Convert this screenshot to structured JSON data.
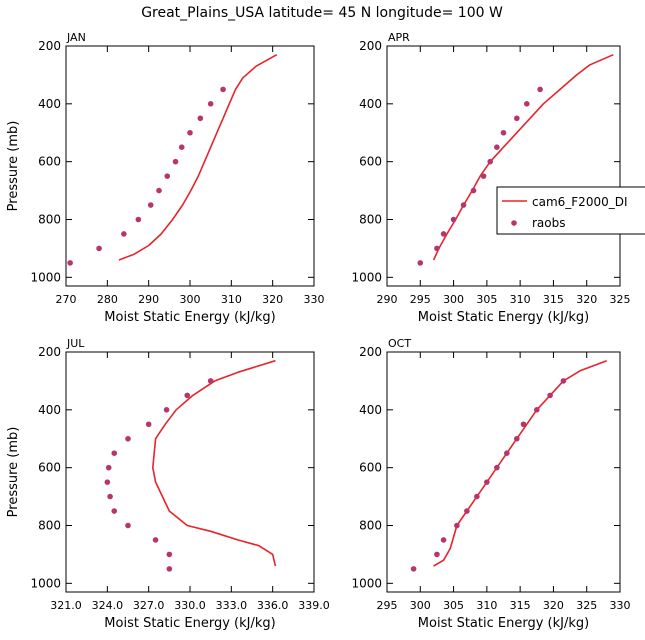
{
  "title": "Great_Plains_USA   latitude= 45 N longitude= 100 W",
  "colors": {
    "model": "#e8232a",
    "obs": "#b7356a",
    "axis": "#000000"
  },
  "legend": {
    "model_label": "cam6_F2000_DI",
    "obs_label": "raobs"
  },
  "chart_data": [
    {
      "type": "line",
      "panel": "JAN",
      "xlabel": "Moist Static Energy (kJ/kg)",
      "ylabel": "Pressure (mb)",
      "xlim": [
        270,
        330
      ],
      "ylim": [
        200,
        1030
      ],
      "xticks": [
        270,
        280,
        290,
        300,
        310,
        320,
        330
      ],
      "xticklabels": [
        "270",
        "280",
        "290",
        "300",
        "310",
        "320",
        "330"
      ],
      "yticks": [
        200,
        400,
        600,
        800,
        1000
      ],
      "yticklabels": [
        "200",
        "400",
        "600",
        "800",
        "1000"
      ],
      "series": [
        {
          "name": "cam6_F2000_DI",
          "kind": "line",
          "points": [
            [
              282.8,
              940
            ],
            [
              286.5,
              920
            ],
            [
              290,
              890
            ],
            [
              293,
              850
            ],
            [
              295.8,
              800
            ],
            [
              298.2,
              750
            ],
            [
              300.2,
              700
            ],
            [
              302,
              650
            ],
            [
              303.5,
              600
            ],
            [
              305,
              550
            ],
            [
              306.5,
              500
            ],
            [
              308,
              450
            ],
            [
              309.5,
              400
            ],
            [
              311,
              350
            ],
            [
              312.8,
              310
            ],
            [
              316,
              270
            ],
            [
              321,
              230
            ]
          ]
        },
        {
          "name": "raobs",
          "kind": "scatter",
          "points": [
            [
              271,
              950
            ],
            [
              278,
              900
            ],
            [
              284,
              850
            ],
            [
              287.5,
              800
            ],
            [
              290.5,
              750
            ],
            [
              292.5,
              700
            ],
            [
              294.5,
              650
            ],
            [
              296.5,
              600
            ],
            [
              298,
              550
            ],
            [
              300,
              500
            ],
            [
              302.5,
              450
            ],
            [
              305,
              400
            ],
            [
              308,
              350
            ]
          ]
        }
      ]
    },
    {
      "type": "line",
      "panel": "APR",
      "xlabel": "Moist Static Energy (kJ/kg)",
      "ylabel": "Pressure (mb)",
      "xlim": [
        290,
        325
      ],
      "ylim": [
        200,
        1030
      ],
      "xticks": [
        290,
        295,
        300,
        305,
        310,
        315,
        320,
        325
      ],
      "xticklabels": [
        "290",
        "295",
        "300",
        "305",
        "310",
        "315",
        "320",
        "325"
      ],
      "yticks": [
        200,
        400,
        600,
        800,
        1000
      ],
      "yticklabels": [
        "200",
        "400",
        "600",
        "800",
        "1000"
      ],
      "series": [
        {
          "name": "cam6_F2000_DI",
          "kind": "line",
          "points": [
            [
              297,
              940
            ],
            [
              297.8,
              900
            ],
            [
              299,
              850
            ],
            [
              300.3,
              800
            ],
            [
              301.5,
              750
            ],
            [
              302.8,
              700
            ],
            [
              304,
              650
            ],
            [
              305.5,
              600
            ],
            [
              307.5,
              550
            ],
            [
              309.5,
              500
            ],
            [
              311.5,
              450
            ],
            [
              313.5,
              400
            ],
            [
              316,
              350
            ],
            [
              318.5,
              300
            ],
            [
              320.5,
              265
            ],
            [
              324,
              230
            ]
          ]
        },
        {
          "name": "raobs",
          "kind": "scatter",
          "points": [
            [
              295,
              950
            ],
            [
              297.5,
              900
            ],
            [
              298.5,
              850
            ],
            [
              300,
              800
            ],
            [
              301.5,
              750
            ],
            [
              303,
              700
            ],
            [
              304.5,
              650
            ],
            [
              305.5,
              600
            ],
            [
              306.5,
              550
            ],
            [
              307.5,
              500
            ],
            [
              309.5,
              450
            ],
            [
              311,
              400
            ],
            [
              313,
              350
            ]
          ]
        }
      ]
    },
    {
      "type": "line",
      "panel": "JUL",
      "xlabel": "Moist Static Energy (kJ/kg)",
      "ylabel": "Pressure (mb)",
      "xlim": [
        321,
        339
      ],
      "ylim": [
        200,
        1030
      ],
      "xticks": [
        321,
        324,
        327,
        330,
        333,
        336,
        339
      ],
      "xticklabels": [
        "321.0",
        "324.0",
        "327.0",
        "330.0",
        "333.0",
        "336.0",
        "339.0"
      ],
      "yticks": [
        200,
        400,
        600,
        800,
        1000
      ],
      "yticklabels": [
        "200",
        "400",
        "600",
        "800",
        "1000"
      ],
      "series": [
        {
          "name": "cam6_F2000_DI",
          "kind": "line",
          "points": [
            [
              336.2,
              940
            ],
            [
              336,
              900
            ],
            [
              335,
              870
            ],
            [
              333.5,
              850
            ],
            [
              331.5,
              820
            ],
            [
              329.8,
              800
            ],
            [
              328.5,
              750
            ],
            [
              327.5,
              650
            ],
            [
              327.3,
              600
            ],
            [
              327.5,
              500
            ],
            [
              328.2,
              450
            ],
            [
              329,
              400
            ],
            [
              330.2,
              350
            ],
            [
              331.8,
              300
            ],
            [
              333.5,
              270
            ],
            [
              336.2,
              230
            ]
          ]
        },
        {
          "name": "raobs",
          "kind": "scatter",
          "points": [
            [
              328.5,
              950
            ],
            [
              328.5,
              900
            ],
            [
              327.5,
              850
            ],
            [
              325.5,
              800
            ],
            [
              324.5,
              750
            ],
            [
              324.2,
              700
            ],
            [
              324,
              650
            ],
            [
              324.1,
              600
            ],
            [
              324.5,
              550
            ],
            [
              325.5,
              500
            ],
            [
              327,
              450
            ],
            [
              328.3,
              400
            ],
            [
              329.8,
              350
            ],
            [
              331.5,
              300
            ]
          ]
        }
      ]
    },
    {
      "type": "line",
      "panel": "OCT",
      "xlabel": "Moist Static Energy (kJ/kg)",
      "ylabel": "Pressure (mb)",
      "xlim": [
        295,
        330
      ],
      "ylim": [
        200,
        1030
      ],
      "xticks": [
        295,
        300,
        305,
        310,
        315,
        320,
        325,
        330
      ],
      "xticklabels": [
        "295",
        "300",
        "305",
        "310",
        "315",
        "320",
        "325",
        "330"
      ],
      "yticks": [
        200,
        400,
        600,
        800,
        1000
      ],
      "yticklabels": [
        "200",
        "400",
        "600",
        "800",
        "1000"
      ],
      "series": [
        {
          "name": "cam6_F2000_DI",
          "kind": "line",
          "points": [
            [
              302,
              940
            ],
            [
              303.5,
              920
            ],
            [
              304.5,
              880
            ],
            [
              305.5,
              800
            ],
            [
              307,
              750
            ],
            [
              308.5,
              700
            ],
            [
              310,
              650
            ],
            [
              311.5,
              600
            ],
            [
              313,
              550
            ],
            [
              314.5,
              500
            ],
            [
              316,
              450
            ],
            [
              317.5,
              400
            ],
            [
              319.5,
              350
            ],
            [
              321.5,
              300
            ],
            [
              324,
              265
            ],
            [
              328,
              230
            ]
          ]
        },
        {
          "name": "raobs",
          "kind": "scatter",
          "points": [
            [
              299,
              950
            ],
            [
              302.5,
              900
            ],
            [
              303.5,
              850
            ],
            [
              305.5,
              800
            ],
            [
              307,
              750
            ],
            [
              308.5,
              700
            ],
            [
              310,
              650
            ],
            [
              311.5,
              600
            ],
            [
              313,
              550
            ],
            [
              314.5,
              500
            ],
            [
              315.5,
              450
            ],
            [
              317.5,
              400
            ],
            [
              319.5,
              350
            ],
            [
              321.5,
              300
            ]
          ]
        }
      ]
    }
  ]
}
